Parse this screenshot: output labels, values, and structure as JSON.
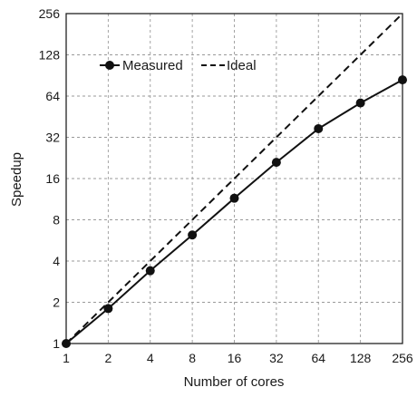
{
  "chart_data": {
    "type": "line",
    "title": "",
    "xlabel": "Number of cores",
    "ylabel": "Speedup",
    "x": [
      1,
      2,
      4,
      8,
      16,
      32,
      64,
      128,
      256
    ],
    "x_tick_labels": [
      "1",
      "2",
      "4",
      "8",
      "16",
      "32",
      "64",
      "128",
      "256"
    ],
    "y_tick_labels": [
      "1",
      "2",
      "4",
      "8",
      "16",
      "32",
      "64",
      "128",
      "256"
    ],
    "xscale": "log2",
    "yscale": "log2",
    "xlim": [
      1,
      256
    ],
    "ylim": [
      1,
      256
    ],
    "grid": true,
    "legend_position": "top-left",
    "series": [
      {
        "name": "Measured",
        "style": "solid",
        "marker": "circle",
        "color": "#111111",
        "values": [
          1,
          1.8,
          3.4,
          6.2,
          11.5,
          21,
          37,
          57,
          84
        ]
      },
      {
        "name": "Ideal",
        "style": "dashed",
        "marker": "none",
        "color": "#111111",
        "values": [
          1,
          2,
          4,
          8,
          16,
          32,
          64,
          128,
          256
        ]
      }
    ]
  }
}
